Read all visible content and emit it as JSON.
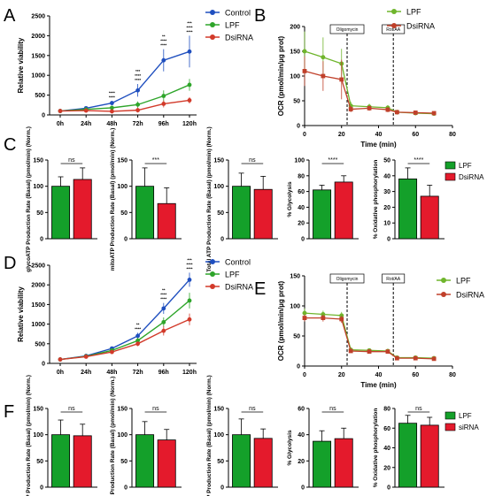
{
  "figure": {
    "panel_labels": [
      "A",
      "B",
      "C",
      "D",
      "E",
      "F"
    ],
    "colors": {
      "control": "#1f4fbf",
      "lpf": "#2ea52a",
      "dsirna": "#d23a2a",
      "bar_lpf": "#14a02a",
      "bar_dsirna": "#e41a2c",
      "ocr_lpf": "#6fb52c",
      "ocr_dsirna": "#c0402a"
    }
  },
  "chart_data": [
    {
      "id": "A",
      "type": "line",
      "x": [
        "0h",
        "24h",
        "48h",
        "72h",
        "96h",
        "120h"
      ],
      "ylabel": "Relative viability",
      "ylim": [
        0,
        2500
      ],
      "yticks": [
        0,
        500,
        1000,
        1500,
        2000,
        2500
      ],
      "series": [
        {
          "name": "Control",
          "values": [
            100,
            170,
            300,
            620,
            1380,
            1600
          ],
          "err": [
            20,
            30,
            50,
            160,
            280,
            400
          ]
        },
        {
          "name": "LPF",
          "values": [
            100,
            140,
            180,
            260,
            480,
            760
          ],
          "err": [
            20,
            30,
            40,
            80,
            140,
            150
          ]
        },
        {
          "name": "DsiRNA",
          "values": [
            100,
            110,
            90,
            120,
            280,
            370
          ],
          "err": [
            20,
            30,
            40,
            60,
            90,
            80
          ]
        }
      ],
      "significance": [
        {
          "x": "48h",
          "lines": [
            "****",
            "****"
          ]
        },
        {
          "x": "72h",
          "lines": [
            "***",
            "****",
            "****"
          ]
        },
        {
          "x": "96h",
          "lines": [
            "**",
            "****",
            "****"
          ]
        },
        {
          "x": "120h",
          "lines": [
            "***",
            "****",
            "****"
          ]
        }
      ],
      "legend": [
        "Control",
        "LPF",
        "DsiRNA"
      ]
    },
    {
      "id": "B",
      "type": "line",
      "x": [
        0,
        10,
        20,
        25,
        35,
        45,
        50,
        60,
        70
      ],
      "xlabel": "Time (min)",
      "ylabel": "OCR (pmol/min/µg prot)",
      "xlim": [
        0,
        80
      ],
      "ylim": [
        0,
        200
      ],
      "xticks": [
        0,
        20,
        40,
        60,
        80
      ],
      "yticks": [
        0,
        50,
        100,
        150,
        200
      ],
      "series": [
        {
          "name": "LPF",
          "values": [
            150,
            138,
            125,
            40,
            38,
            36,
            27,
            25,
            24
          ],
          "err": [
            40,
            40,
            30,
            8,
            6,
            5,
            5,
            4,
            4
          ]
        },
        {
          "name": "DsiRNA",
          "values": [
            110,
            100,
            93,
            33,
            35,
            32,
            27,
            26,
            25
          ],
          "err": [
            30,
            30,
            40,
            6,
            5,
            5,
            4,
            4,
            4
          ]
        }
      ],
      "markers": [
        {
          "x": 23,
          "label": "Oligomycin"
        },
        {
          "x": 48,
          "label": "Rot/AA"
        }
      ],
      "legend": [
        "LPF",
        "DsiRNA"
      ]
    },
    {
      "id": "C",
      "type": "bar",
      "legend": [
        "LPF",
        "DsiRNA"
      ],
      "panels": [
        {
          "ylabel": "glycoATP Production Rate (Basal) (pmol/min) (Norm.)",
          "ylim": [
            0,
            150
          ],
          "yticks": [
            0,
            50,
            100,
            150
          ],
          "categories": [
            "LPF",
            "DsiRNA"
          ],
          "values": [
            100,
            113
          ],
          "err": [
            18,
            22
          ],
          "sig": "ns"
        },
        {
          "ylabel": "mitoATP Production Rate (Basal) (pmol/min) (Norm.)",
          "ylim": [
            0,
            150
          ],
          "yticks": [
            0,
            50,
            100,
            150
          ],
          "categories": [
            "LPF",
            "DsiRNA"
          ],
          "values": [
            100,
            67
          ],
          "err": [
            35,
            30
          ],
          "sig": "***"
        },
        {
          "ylabel": "Total ATP Production Rate (Basal) (pmol/min) (Norm.)",
          "ylim": [
            0,
            150
          ],
          "yticks": [
            0,
            50,
            100,
            150
          ],
          "categories": [
            "LPF",
            "DsiRNA"
          ],
          "values": [
            100,
            94
          ],
          "err": [
            25,
            25
          ],
          "sig": "ns"
        },
        {
          "ylabel": "% Glycolysis",
          "ylim": [
            0,
            100
          ],
          "yticks": [
            0,
            20,
            40,
            60,
            80,
            100
          ],
          "categories": [
            "LPF",
            "DsiRNA"
          ],
          "values": [
            62,
            72
          ],
          "err": [
            6,
            8
          ],
          "sig": "****"
        },
        {
          "ylabel": "% Oxidative phosphorylation",
          "ylim": [
            0,
            50
          ],
          "yticks": [
            0,
            10,
            20,
            30,
            40,
            50
          ],
          "categories": [
            "LPF",
            "DsiRNA"
          ],
          "values": [
            38,
            27
          ],
          "err": [
            7,
            7
          ],
          "sig": "****"
        }
      ]
    },
    {
      "id": "D",
      "type": "line",
      "x": [
        "0h",
        "24h",
        "48h",
        "72h",
        "96h",
        "120h"
      ],
      "ylabel": "Relative viability",
      "ylim": [
        0,
        2500
      ],
      "yticks": [
        0,
        500,
        1000,
        1500,
        2000,
        2500
      ],
      "series": [
        {
          "name": "Control",
          "values": [
            100,
            190,
            380,
            700,
            1400,
            2130
          ],
          "err": [
            20,
            30,
            40,
            80,
            140,
            180
          ]
        },
        {
          "name": "LPF",
          "values": [
            100,
            180,
            330,
            580,
            1050,
            1600
          ],
          "err": [
            20,
            30,
            40,
            80,
            120,
            200
          ]
        },
        {
          "name": "DsiRNA",
          "values": [
            100,
            170,
            290,
            500,
            830,
            1120
          ],
          "err": [
            20,
            30,
            40,
            60,
            120,
            150
          ]
        }
      ],
      "significance": [
        {
          "x": "72h",
          "lines": [
            "**",
            "****"
          ]
        },
        {
          "x": "96h",
          "lines": [
            "**",
            "****",
            "****"
          ]
        },
        {
          "x": "120h",
          "lines": [
            "***",
            "****",
            "****"
          ]
        }
      ],
      "legend": [
        "Control",
        "LPF",
        "DsiRNA"
      ]
    },
    {
      "id": "E",
      "type": "line",
      "x": [
        0,
        10,
        20,
        25,
        35,
        45,
        50,
        60,
        70
      ],
      "xlabel": "Time (min)",
      "ylabel": "OCR (pmol/min/µg prot)",
      "xlim": [
        0,
        80
      ],
      "ylim": [
        0,
        150
      ],
      "xticks": [
        0,
        20,
        40,
        60,
        80
      ],
      "yticks": [
        0,
        50,
        100,
        150
      ],
      "series": [
        {
          "name": "LPF",
          "values": [
            88,
            86,
            84,
            27,
            26,
            25,
            14,
            14,
            13
          ],
          "err": [
            8,
            6,
            6,
            4,
            3,
            3,
            3,
            3,
            3
          ]
        },
        {
          "name": "DsiRNA",
          "values": [
            80,
            80,
            78,
            25,
            24,
            24,
            13,
            13,
            12
          ],
          "err": [
            6,
            6,
            6,
            3,
            3,
            3,
            3,
            3,
            3
          ]
        }
      ],
      "markers": [
        {
          "x": 23,
          "label": "Oligomycin"
        },
        {
          "x": 48,
          "label": "Rot/AA"
        }
      ],
      "legend": [
        "LPF",
        "DsiRNA"
      ]
    },
    {
      "id": "F",
      "type": "bar",
      "legend": [
        "LPF",
        "siRNA"
      ],
      "panels": [
        {
          "ylabel": "glycoATP Production Rate (Basal) (pmol/min) (Norm.)",
          "ylim": [
            0,
            150
          ],
          "yticks": [
            0,
            50,
            100,
            150
          ],
          "categories": [
            "LPF",
            "siRNA"
          ],
          "values": [
            100,
            98
          ],
          "err": [
            28,
            22
          ],
          "sig": "ns"
        },
        {
          "ylabel": "mitoATP Production Rate (Basal) (pmol/min) (Norm.)",
          "ylim": [
            0,
            150
          ],
          "yticks": [
            0,
            50,
            100,
            150
          ],
          "categories": [
            "LPF",
            "siRNA"
          ],
          "values": [
            100,
            90
          ],
          "err": [
            25,
            20
          ],
          "sig": "ns"
        },
        {
          "ylabel": "Total ATP Production Rate (Basal) (pmol/min) (Norm.)",
          "ylim": [
            0,
            150
          ],
          "yticks": [
            0,
            50,
            100,
            150
          ],
          "categories": [
            "LPF",
            "siRNA"
          ],
          "values": [
            100,
            93
          ],
          "err": [
            30,
            18
          ],
          "sig": "ns"
        },
        {
          "ylabel": "% Glycolysis",
          "ylim": [
            0,
            60
          ],
          "yticks": [
            0,
            20,
            40,
            60
          ],
          "categories": [
            "LPF",
            "siRNA"
          ],
          "values": [
            35,
            37
          ],
          "err": [
            8,
            8
          ],
          "sig": "ns"
        },
        {
          "ylabel": "% Oxidative phosphorylation",
          "ylim": [
            0,
            80
          ],
          "yticks": [
            0,
            20,
            40,
            60,
            80
          ],
          "categories": [
            "LPF",
            "siRNA"
          ],
          "values": [
            65,
            63
          ],
          "err": [
            8,
            8
          ],
          "sig": "ns"
        }
      ]
    }
  ]
}
